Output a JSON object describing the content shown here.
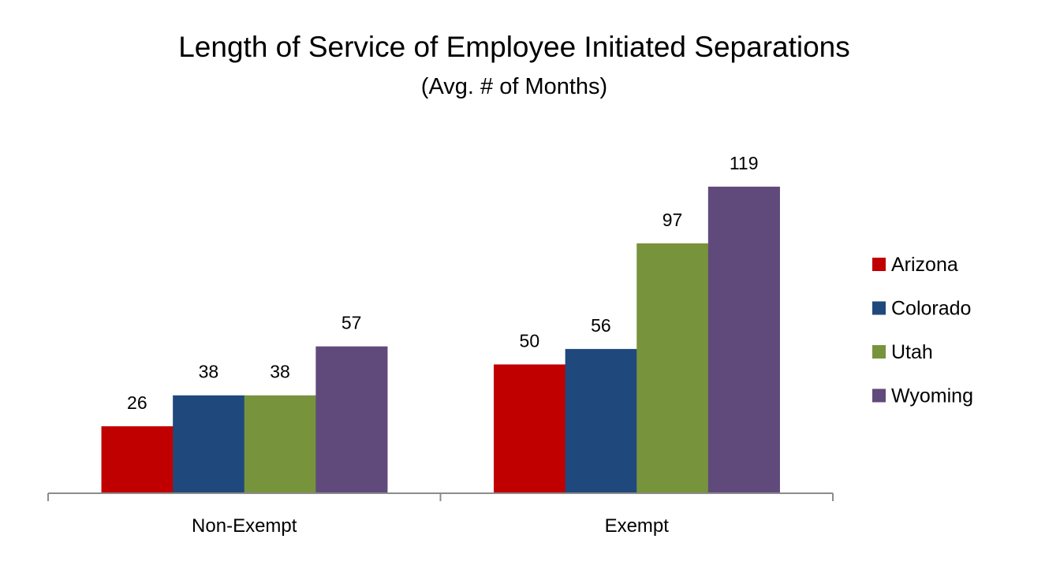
{
  "chart_data": {
    "type": "bar",
    "title": "Length of Service of Employee Initiated Separations",
    "subtitle": "(Avg. # of Months)",
    "xlabel": "",
    "ylabel": "",
    "categories": [
      "Non-Exempt",
      "Exempt"
    ],
    "series": [
      {
        "name": "Arizona",
        "color": "#C00000",
        "values": [
          26,
          50
        ]
      },
      {
        "name": "Colorado",
        "color": "#1F497D",
        "values": [
          38,
          56
        ]
      },
      {
        "name": "Utah",
        "color": "#77933C",
        "values": [
          38,
          97
        ]
      },
      {
        "name": "Wyoming",
        "color": "#604A7B",
        "values": [
          57,
          119
        ]
      }
    ],
    "ylim": [
      0,
      140
    ],
    "y_axis_visible": false,
    "grid": false,
    "data_labels": true,
    "legend_position": "right"
  }
}
